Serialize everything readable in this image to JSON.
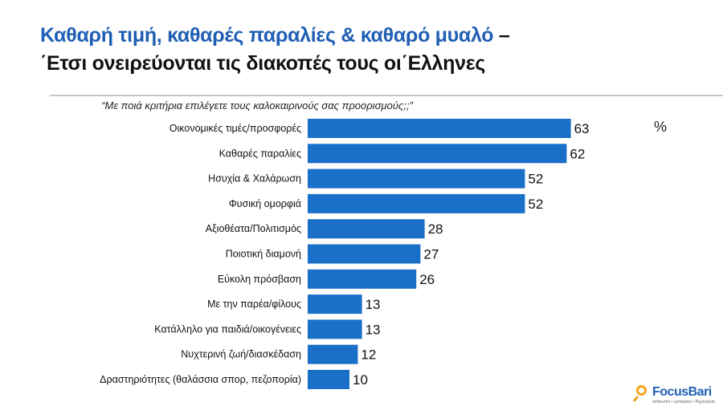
{
  "title": {
    "line1_blue": "Καθαρή τιμή, καθαρές παραλίες & καθαρό μυαλό",
    "line1_dash": " –",
    "line2": "΄Ετσι ονειρεύονται τις διακοπές τους οι΄Ελληνες"
  },
  "question": "“Με ποιά κριτήρια επιλέγετε τους καλοκαιρινούς σας προορισμούς;;”",
  "unit": "%",
  "logo": {
    "brand": "FocusBari",
    "tagline": "ανθρωποι • εμπειρικοι • δημιουργία"
  },
  "colors": {
    "bar": "#1a6fc9",
    "title_blue": "#1f5fb4",
    "logo_accent": "#f2a81d"
  },
  "chart_data": {
    "type": "bar",
    "orientation": "horizontal",
    "categories": [
      "Οικονομικές τιμές/προσφορές",
      "Καθαρές παραλίες",
      "Ησυχία & Χαλάρωση",
      "Φυσική ομορφιά",
      "Αξιοθέατα/Πολιτισμός",
      "Ποιοτική διαμονή",
      "Εύκολη πρόσβαση",
      "Με την παρέα/φίλους",
      "Κατάλληλο για παιδιά/οικογένειες",
      "Νυχτερινή ζωή/διασκέδαση",
      "Δραστηριότητες (θαλάσσια σπορ, πεζοπορία)"
    ],
    "values": [
      63,
      62,
      52,
      52,
      28,
      27,
      26,
      13,
      13,
      12,
      10
    ],
    "xlim": [
      0,
      100
    ],
    "grid": false,
    "data_labels": true
  }
}
